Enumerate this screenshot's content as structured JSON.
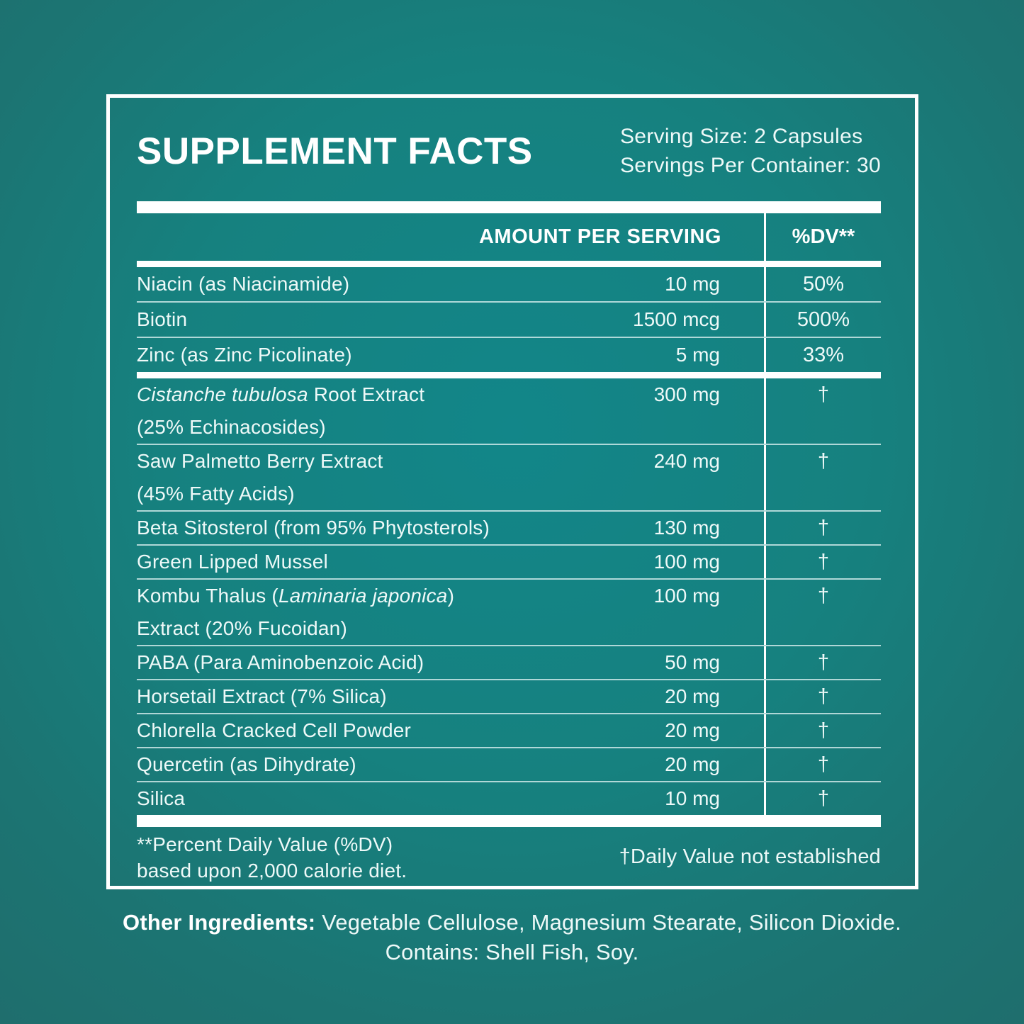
{
  "label": {
    "title": "SUPPLEMENT FACTS",
    "serving_size": "Serving Size: 2 Capsules",
    "servings_per_container": "Servings Per Container: 30",
    "columns": {
      "amount": "AMOUNT PER SERVING",
      "dv": "%DV**"
    },
    "groups": [
      {
        "rows": [
          {
            "name": [
              [
                {
                  "t": "Niacin (as Niacinamide)"
                }
              ]
            ],
            "amount": "10 mg",
            "dv": "50%"
          },
          {
            "name": [
              [
                {
                  "t": "Biotin"
                }
              ]
            ],
            "amount": "1500 mcg",
            "dv": "500%"
          },
          {
            "name": [
              [
                {
                  "t": "Zinc (as Zinc Picolinate)"
                }
              ]
            ],
            "amount": "5 mg",
            "dv": "33%"
          }
        ]
      },
      {
        "rows": [
          {
            "name": [
              [
                {
                  "t": "Cistanche tubulosa",
                  "i": true
                },
                {
                  "t": " Root Extract"
                }
              ],
              [
                {
                  "t": "(25% Echinacosides)"
                }
              ]
            ],
            "amount": "300 mg",
            "dv": "†"
          },
          {
            "name": [
              [
                {
                  "t": "Saw Palmetto Berry Extract"
                }
              ],
              [
                {
                  "t": "(45% Fatty Acids)"
                }
              ]
            ],
            "amount": "240 mg",
            "dv": "†"
          },
          {
            "name": [
              [
                {
                  "t": "Beta Sitosterol (from 95% Phytosterols)"
                }
              ]
            ],
            "amount": "130 mg",
            "dv": "†"
          },
          {
            "name": [
              [
                {
                  "t": "Green Lipped Mussel"
                }
              ]
            ],
            "amount": "100 mg",
            "dv": "†"
          },
          {
            "name": [
              [
                {
                  "t": "Kombu Thalus ("
                },
                {
                  "t": "Laminaria japonica",
                  "i": true
                },
                {
                  "t": ")"
                }
              ],
              [
                {
                  "t": "Extract (20% Fucoidan)"
                }
              ]
            ],
            "amount": "100 mg",
            "dv": "†"
          },
          {
            "name": [
              [
                {
                  "t": "PABA (Para Aminobenzoic Acid)"
                }
              ]
            ],
            "amount": "50 mg",
            "dv": "†"
          },
          {
            "name": [
              [
                {
                  "t": "Horsetail Extract (7% Silica)"
                }
              ]
            ],
            "amount": "20 mg",
            "dv": "†"
          },
          {
            "name": [
              [
                {
                  "t": "Chlorella Cracked Cell Powder"
                }
              ]
            ],
            "amount": "20 mg",
            "dv": "†"
          },
          {
            "name": [
              [
                {
                  "t": "Quercetin (as Dihydrate)"
                }
              ]
            ],
            "amount": "20 mg",
            "dv": "†"
          },
          {
            "name": [
              [
                {
                  "t": "Silica"
                }
              ]
            ],
            "amount": "10 mg",
            "dv": "†"
          }
        ]
      }
    ],
    "footnotes": {
      "dv_note_line1": "**Percent Daily Value (%DV)",
      "dv_note_line2": "based upon 2,000 calorie diet.",
      "dagger_note": "†Daily Value not established"
    },
    "other_ingredients": {
      "label": "Other Ingredients:",
      "text": " Vegetable Cellulose, Magnesium Stearate, Silicon Dioxide.",
      "contains": "Contains: Shell Fish, Soy."
    },
    "colors": {
      "background_center": "#128689",
      "background_edge": "#1f6e6d",
      "text": "#eef9f8",
      "bars": "#ffffff",
      "row_line": "#ecfaf9"
    }
  }
}
